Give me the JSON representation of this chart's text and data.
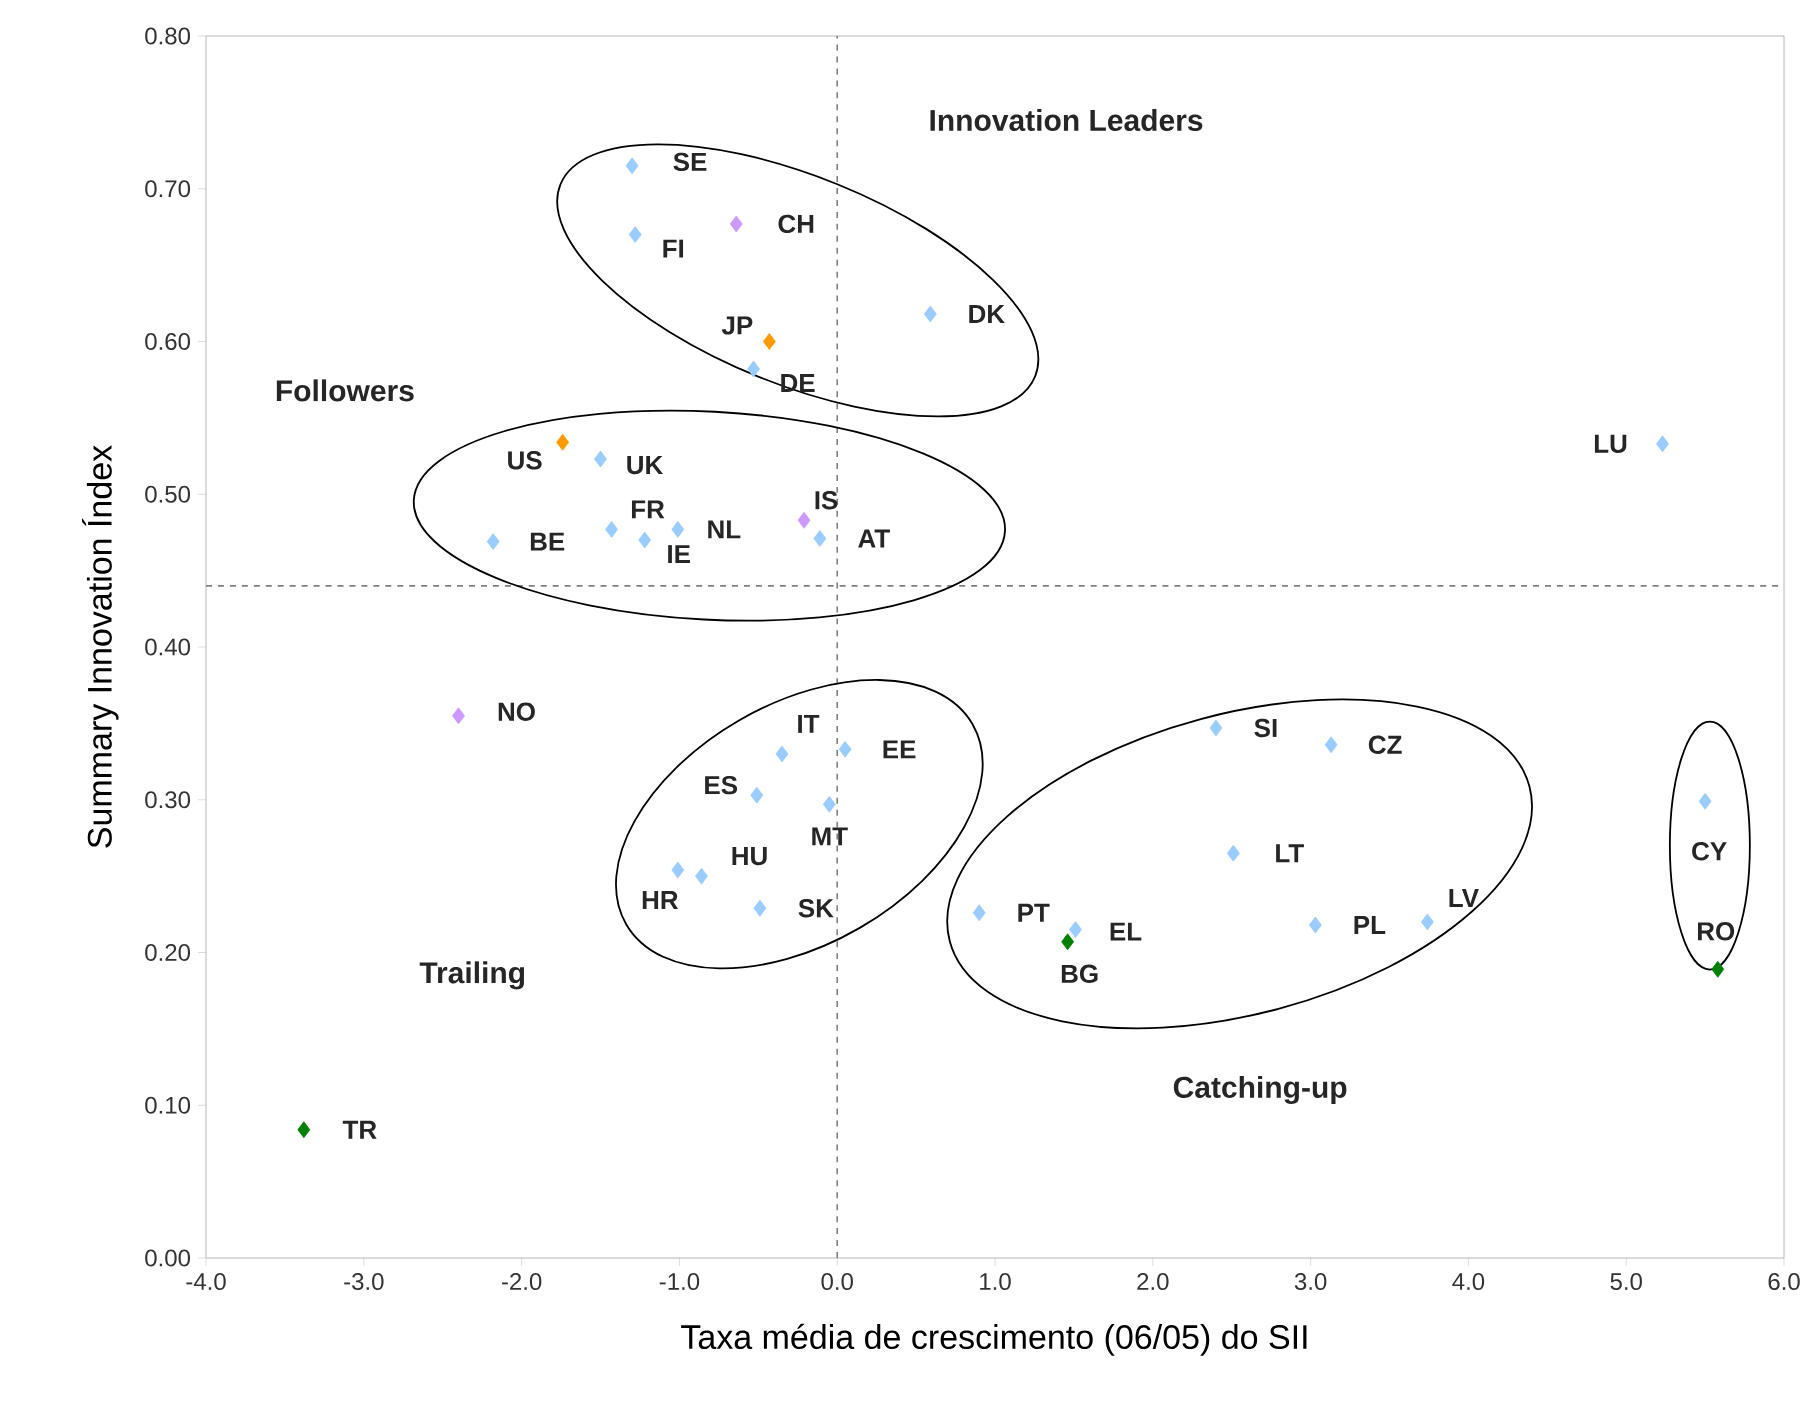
{
  "chart_data": {
    "type": "scatter",
    "xlabel": "Taxa média de crescimento (06/05) do SII",
    "ylabel": "Summary Innovation Índex",
    "x": [
      -1.3,
      -1.28,
      -0.64,
      -0.43,
      -0.53,
      0.59,
      -1.74,
      -1.5,
      -2.18,
      -1.43,
      -1.22,
      -1.01,
      -0.21,
      -0.11,
      5.23,
      -2.4,
      -0.35,
      0.05,
      -0.51,
      -0.05,
      -1.01,
      -0.86,
      -0.49,
      -3.38,
      2.4,
      3.13,
      2.51,
      0.9,
      1.51,
      1.46,
      3.03,
      3.74,
      5.5,
      5.58
    ],
    "values": [
      0.715,
      0.67,
      0.677,
      0.6,
      0.582,
      0.618,
      0.534,
      0.523,
      0.469,
      0.477,
      0.47,
      0.477,
      0.483,
      0.471,
      0.533,
      0.355,
      0.33,
      0.333,
      0.303,
      0.297,
      0.254,
      0.25,
      0.229,
      0.084,
      0.347,
      0.336,
      0.265,
      0.226,
      0.215,
      0.207,
      0.218,
      0.22,
      0.299,
      0.189
    ],
    "colors": [
      "#99ccff",
      "#99ccff",
      "#cc99ff",
      "#ff9900",
      "#99ccff",
      "#99ccff",
      "#ff9900",
      "#99ccff",
      "#99ccff",
      "#99ccff",
      "#99ccff",
      "#99ccff",
      "#cc99ff",
      "#99ccff",
      "#99ccff",
      "#cc99ff",
      "#99ccff",
      "#99ccff",
      "#99ccff",
      "#99ccff",
      "#99ccff",
      "#99ccff",
      "#99ccff",
      "#008000",
      "#99ccff",
      "#99ccff",
      "#99ccff",
      "#99ccff",
      "#99ccff",
      "#008000",
      "#99ccff",
      "#99ccff",
      "#99ccff",
      "#008000"
    ],
    "marker": "diamond",
    "xlim": [
      -4,
      6
    ],
    "ylim": [
      0,
      0.8
    ],
    "xticks": [
      {
        "value": -4,
        "label": "-4.0"
      },
      {
        "value": -3,
        "label": "-3.0"
      },
      {
        "value": -2,
        "label": "-2.0"
      },
      {
        "value": -1,
        "label": "-1.0"
      },
      {
        "value": 0,
        "label": "0.0"
      },
      {
        "value": 1,
        "label": "1.0"
      },
      {
        "value": 2,
        "label": "2.0"
      },
      {
        "value": 3,
        "label": "3.0"
      },
      {
        "value": 4,
        "label": "4.0"
      },
      {
        "value": 5,
        "label": "5.0"
      },
      {
        "value": 6,
        "label": "6.0"
      }
    ],
    "yticks": [
      {
        "value": 0,
        "label": "0.00"
      },
      {
        "value": 0.1,
        "label": "0.10"
      },
      {
        "value": 0.2,
        "label": "0.20"
      },
      {
        "value": 0.3,
        "label": "0.30"
      },
      {
        "value": 0.4,
        "label": "0.40"
      },
      {
        "value": 0.5,
        "label": "0.50"
      },
      {
        "value": 0.6,
        "label": "0.60"
      },
      {
        "value": 0.7,
        "label": "0.70"
      },
      {
        "value": 0.8,
        "label": "0.80"
      }
    ],
    "ref_lines": [
      {
        "axis": "x",
        "value": 0,
        "line_style": "dashed"
      },
      {
        "axis": "y",
        "value": 0.44,
        "line_style": "dashed"
      }
    ],
    "annotations": [
      "Innovation Leaders",
      "Followers",
      "Trailing",
      "Catching-up",
      {
        "text": "SE",
        "x": -1.3,
        "y": 0.715
      },
      {
        "text": "FI",
        "x": -1.28,
        "y": 0.67
      },
      {
        "text": "CH",
        "x": -0.64,
        "y": 0.677
      },
      {
        "text": "JP",
        "x": -0.43,
        "y": 0.6
      },
      {
        "text": "DE",
        "x": -0.53,
        "y": 0.582
      },
      {
        "text": "DK",
        "x": 0.59,
        "y": 0.618
      },
      {
        "text": "US",
        "x": -1.74,
        "y": 0.534
      },
      {
        "text": "UK",
        "x": -1.5,
        "y": 0.523
      },
      {
        "text": "BE",
        "x": -2.18,
        "y": 0.469
      },
      {
        "text": "FR",
        "x": -1.43,
        "y": 0.477
      },
      {
        "text": "IE",
        "x": -1.22,
        "y": 0.47
      },
      {
        "text": "NL",
        "x": -1.01,
        "y": 0.477
      },
      {
        "text": "IS",
        "x": -0.21,
        "y": 0.483
      },
      {
        "text": "AT",
        "x": -0.11,
        "y": 0.471
      },
      {
        "text": "LU",
        "x": 5.23,
        "y": 0.533
      },
      {
        "text": "NO",
        "x": -2.4,
        "y": 0.355
      },
      {
        "text": "IT",
        "x": -0.35,
        "y": 0.33
      },
      {
        "text": "EE",
        "x": 0.05,
        "y": 0.333
      },
      {
        "text": "ES",
        "x": -0.51,
        "y": 0.303
      },
      {
        "text": "MT",
        "x": -0.05,
        "y": 0.297
      },
      {
        "text": "HR",
        "x": -1.01,
        "y": 0.254
      },
      {
        "text": "HU",
        "x": -0.86,
        "y": 0.25
      },
      {
        "text": "SK",
        "x": -0.49,
        "y": 0.229
      },
      {
        "text": "TR",
        "x": -3.38,
        "y": 0.084
      },
      {
        "text": "SI",
        "x": 2.4,
        "y": 0.347
      },
      {
        "text": "CZ",
        "x": 3.13,
        "y": 0.336
      },
      {
        "text": "LT",
        "x": 2.51,
        "y": 0.265
      },
      {
        "text": "PT",
        "x": 0.9,
        "y": 0.226
      },
      {
        "text": "EL",
        "x": 1.51,
        "y": 0.215
      },
      {
        "text": "BG",
        "x": 1.46,
        "y": 0.207
      },
      {
        "text": "PL",
        "x": 3.03,
        "y": 0.218
      },
      {
        "text": "LV",
        "x": 3.74,
        "y": 0.22
      },
      {
        "text": "CY",
        "x": 5.5,
        "y": 0.299
      },
      {
        "text": "RO",
        "x": 5.58,
        "y": 0.189
      }
    ]
  }
}
